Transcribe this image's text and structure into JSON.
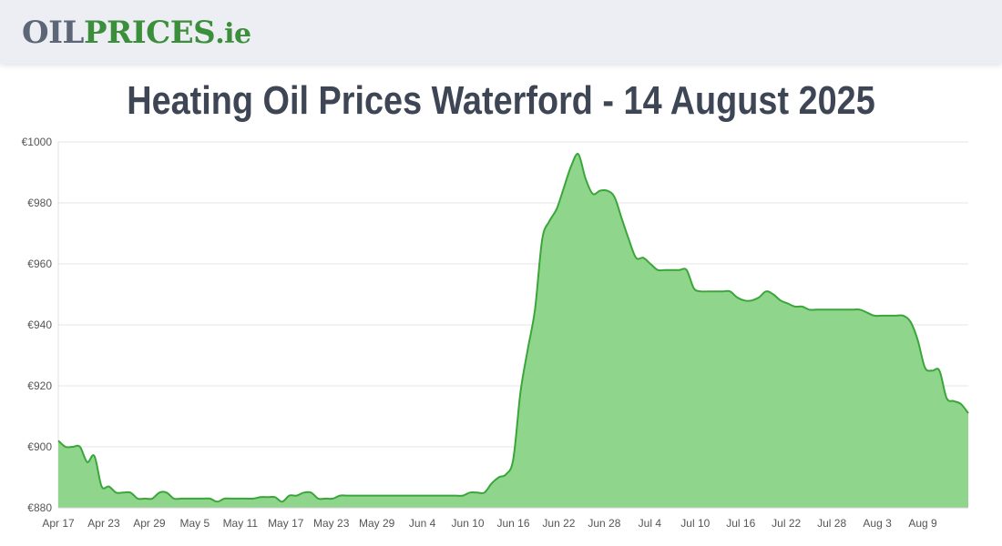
{
  "header": {
    "logo_part1": "OIL",
    "logo_part2": "PRICES",
    "logo_part3": ".ie"
  },
  "title": "Heating Oil Prices Waterford - 14 August 2025",
  "colors": {
    "line": "#3aa63a",
    "fill": "#8fd68c",
    "grid": "#e6e6e6"
  },
  "chart_data": {
    "type": "area",
    "title": "Heating Oil Prices Waterford - 14 August 2025",
    "xlabel": "",
    "ylabel": "",
    "ylim": [
      880,
      1000
    ],
    "y_ticks": [
      "€880",
      "€900",
      "€920",
      "€940",
      "€960",
      "€980",
      "€1000"
    ],
    "y_tick_values": [
      880,
      900,
      920,
      940,
      960,
      980,
      1000
    ],
    "x_ticks": [
      "Apr 17",
      "Apr 23",
      "Apr 29",
      "May 5",
      "May 11",
      "May 17",
      "May 23",
      "May 29",
      "Jun 4",
      "Jun 10",
      "Jun 16",
      "Jun 22",
      "Jun 28",
      "Jul 4",
      "Jul 10",
      "Jul 16",
      "Jul 22",
      "Jul 28",
      "Aug 3",
      "Aug 9"
    ],
    "grid": true,
    "series": [
      {
        "values": [
          902,
          900,
          900,
          900,
          895,
          897,
          887,
          887,
          885,
          885,
          885,
          883,
          883,
          883,
          885,
          885,
          883,
          883,
          883,
          883,
          883,
          883,
          882,
          883,
          883,
          883,
          883,
          883,
          883.5,
          883.5,
          883.5,
          882,
          884,
          884,
          885,
          885,
          883,
          883,
          883,
          884,
          884,
          884,
          884,
          884,
          884,
          884,
          884,
          884,
          884,
          884,
          884,
          884,
          884,
          884,
          884,
          884,
          884,
          885,
          885,
          885,
          888,
          890,
          891,
          896,
          918,
          932,
          945,
          968,
          974,
          978,
          985,
          992,
          996,
          988,
          983,
          984,
          984,
          982,
          975,
          968,
          962,
          962,
          960,
          958,
          958,
          958,
          958,
          958,
          952,
          951,
          951,
          951,
          951,
          951,
          949,
          948,
          948,
          949,
          951,
          950,
          948,
          947,
          946,
          946,
          945,
          945,
          945,
          945,
          945,
          945,
          945,
          945,
          944,
          943,
          943,
          943,
          943,
          943,
          941,
          935,
          926,
          925,
          925,
          916,
          915,
          914,
          911
        ]
      }
    ]
  }
}
